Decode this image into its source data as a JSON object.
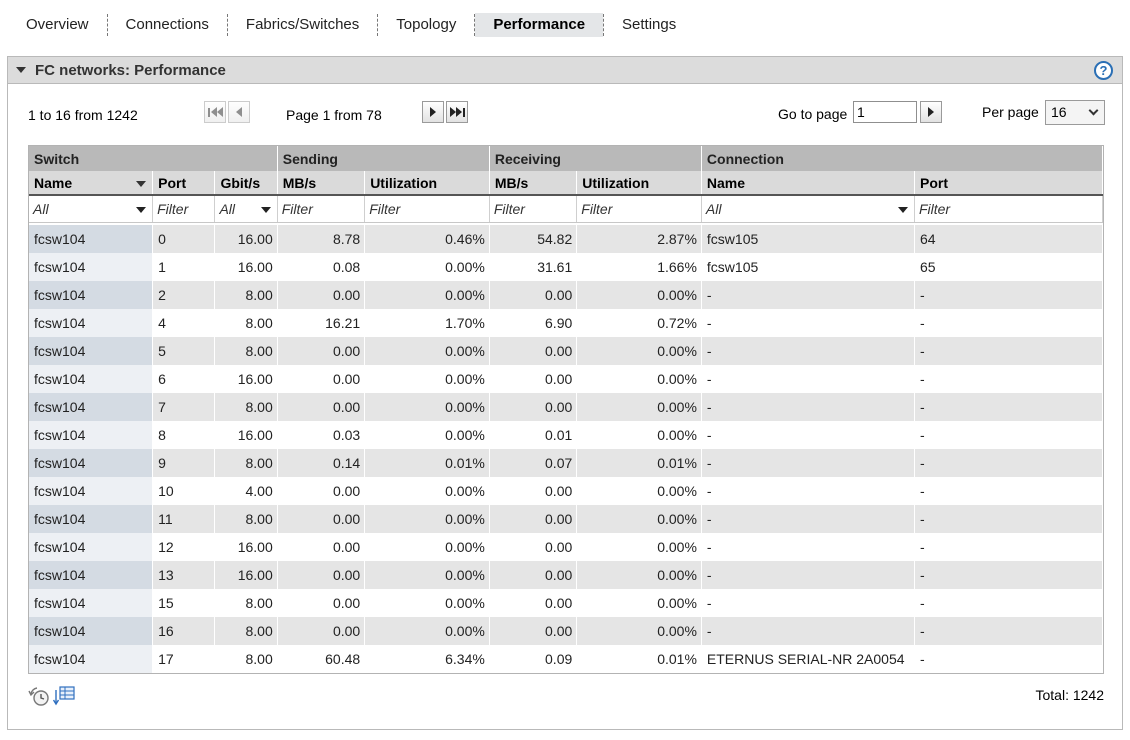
{
  "tabs": [
    {
      "label": "Overview"
    },
    {
      "label": "Connections"
    },
    {
      "label": "Fabrics/Switches"
    },
    {
      "label": "Topology"
    },
    {
      "label": "Performance"
    },
    {
      "label": "Settings"
    }
  ],
  "active_tab": "Performance",
  "panel": {
    "title": "FC networks: Performance",
    "help_label": "?"
  },
  "pager": {
    "range": "1 to 16 from 1242",
    "page": "Page 1 from 78",
    "goto_label": "Go to page",
    "goto_value": "1",
    "per_page_label": "Per page",
    "per_page_value": "16"
  },
  "table": {
    "groups": [
      "Switch",
      "Sending",
      "Receiving",
      "Connection"
    ],
    "columns": [
      "Name",
      "Port",
      "Gbit/s",
      "MB/s",
      "Utilization",
      "MB/s",
      "Utilization",
      "Name",
      "Port"
    ],
    "filters": [
      "All",
      "Filter",
      "All",
      "Filter",
      "Filter",
      "Filter",
      "Filter",
      "All",
      "Filter"
    ],
    "rows": [
      [
        "fcsw104",
        "0",
        "16.00",
        "8.78",
        "0.46%",
        "54.82",
        "2.87%",
        "fcsw105",
        "64"
      ],
      [
        "fcsw104",
        "1",
        "16.00",
        "0.08",
        "0.00%",
        "31.61",
        "1.66%",
        "fcsw105",
        "65"
      ],
      [
        "fcsw104",
        "2",
        "8.00",
        "0.00",
        "0.00%",
        "0.00",
        "0.00%",
        "-",
        "-"
      ],
      [
        "fcsw104",
        "4",
        "8.00",
        "16.21",
        "1.70%",
        "6.90",
        "0.72%",
        "-",
        "-"
      ],
      [
        "fcsw104",
        "5",
        "8.00",
        "0.00",
        "0.00%",
        "0.00",
        "0.00%",
        "-",
        "-"
      ],
      [
        "fcsw104",
        "6",
        "16.00",
        "0.00",
        "0.00%",
        "0.00",
        "0.00%",
        "-",
        "-"
      ],
      [
        "fcsw104",
        "7",
        "8.00",
        "0.00",
        "0.00%",
        "0.00",
        "0.00%",
        "-",
        "-"
      ],
      [
        "fcsw104",
        "8",
        "16.00",
        "0.03",
        "0.00%",
        "0.01",
        "0.00%",
        "-",
        "-"
      ],
      [
        "fcsw104",
        "9",
        "8.00",
        "0.14",
        "0.01%",
        "0.07",
        "0.01%",
        "-",
        "-"
      ],
      [
        "fcsw104",
        "10",
        "4.00",
        "0.00",
        "0.00%",
        "0.00",
        "0.00%",
        "-",
        "-"
      ],
      [
        "fcsw104",
        "11",
        "8.00",
        "0.00",
        "0.00%",
        "0.00",
        "0.00%",
        "-",
        "-"
      ],
      [
        "fcsw104",
        "12",
        "16.00",
        "0.00",
        "0.00%",
        "0.00",
        "0.00%",
        "-",
        "-"
      ],
      [
        "fcsw104",
        "13",
        "16.00",
        "0.00",
        "0.00%",
        "0.00",
        "0.00%",
        "-",
        "-"
      ],
      [
        "fcsw104",
        "15",
        "8.00",
        "0.00",
        "0.00%",
        "0.00",
        "0.00%",
        "-",
        "-"
      ],
      [
        "fcsw104",
        "16",
        "8.00",
        "0.00",
        "0.00%",
        "0.00",
        "0.00%",
        "-",
        "-"
      ],
      [
        "fcsw104",
        "17",
        "8.00",
        "60.48",
        "6.34%",
        "0.09",
        "0.01%",
        "ETERNUS SERIAL-NR 2A0054",
        "-"
      ]
    ]
  },
  "footer": {
    "total": "Total: 1242",
    "icons": [
      "refresh-clock-icon",
      "export-table-icon"
    ]
  },
  "colors": {
    "group_header_bg": "#b9b9b9",
    "column_header_bg": "#dadada",
    "row_alt_bg": "#e5e5e5",
    "name_cell_bg": "#d4dbe3",
    "help_icon": "#2a6fb5"
  }
}
